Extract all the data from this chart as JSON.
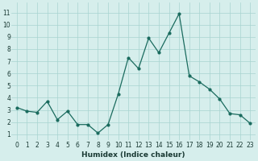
{
  "x": [
    0,
    1,
    2,
    3,
    4,
    5,
    6,
    7,
    8,
    9,
    10,
    11,
    12,
    13,
    14,
    15,
    16,
    17,
    18,
    19,
    20,
    21,
    22,
    23
  ],
  "y": [
    3.2,
    2.9,
    2.8,
    3.7,
    2.2,
    2.9,
    1.8,
    1.8,
    1.1,
    1.8,
    4.3,
    7.3,
    6.4,
    8.9,
    7.7,
    9.3,
    10.9,
    5.8,
    5.3,
    4.7,
    3.9,
    2.7,
    2.6,
    1.9
  ],
  "xlabel": "Humidex (Indice chaleur)",
  "xlim": [
    -0.5,
    23.5
  ],
  "ylim": [
    0.5,
    11.8
  ],
  "yticks": [
    1,
    2,
    3,
    4,
    5,
    6,
    7,
    8,
    9,
    10,
    11
  ],
  "xticks": [
    0,
    1,
    2,
    3,
    4,
    5,
    6,
    7,
    8,
    9,
    10,
    11,
    12,
    13,
    14,
    15,
    16,
    17,
    18,
    19,
    20,
    21,
    22,
    23
  ],
  "xtick_labels": [
    "0",
    "1",
    "2",
    "3",
    "4",
    "5",
    "6",
    "7",
    "8",
    "9",
    "10",
    "11",
    "12",
    "13",
    "14",
    "15",
    "16",
    "17",
    "18",
    "19",
    "20",
    "21",
    "22",
    "23"
  ],
  "line_color": "#1a6b5e",
  "marker": "o",
  "marker_size": 2.0,
  "line_width": 0.9,
  "bg_color": "#d6eeec",
  "grid_color": "#a8d4d0",
  "xlabel_fontsize": 6.5,
  "tick_fontsize": 5.5,
  "xlabel_color": "#1a3a34",
  "tick_color": "#1a3a34"
}
